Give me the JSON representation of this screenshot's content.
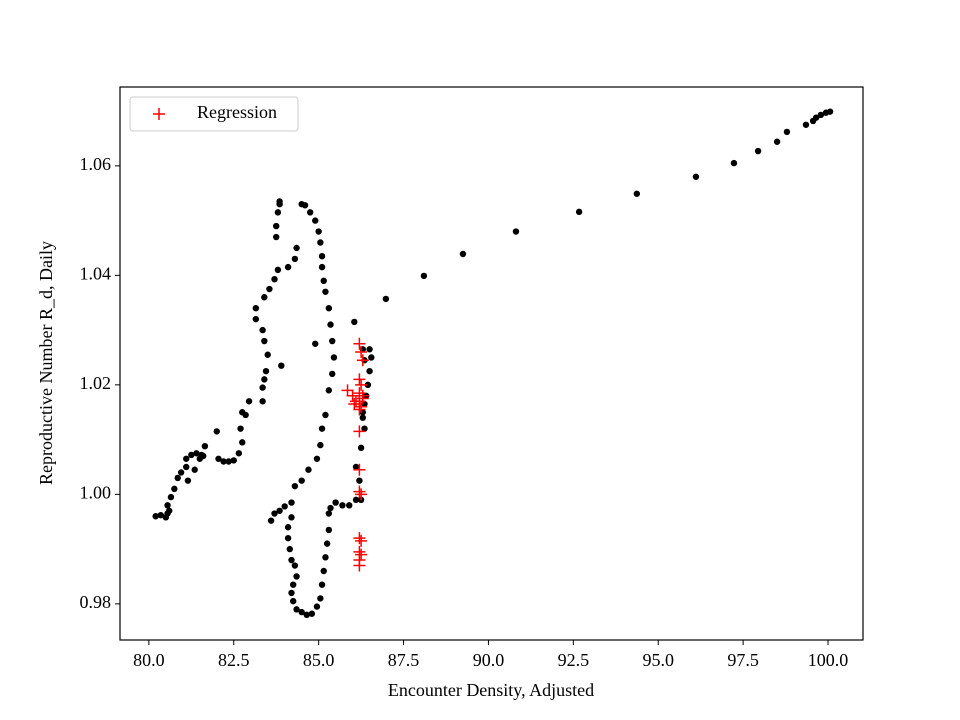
{
  "chart_data": {
    "type": "scatter",
    "xlabel": "Encounter Density, Adjusted",
    "ylabel": "Reproductive Number R_d, Daily",
    "xlim": [
      79.15,
      101.03
    ],
    "ylim": [
      0.9734,
      1.0744
    ],
    "xticks": [
      {
        "value": 80,
        "label": "80.0"
      },
      82.5,
      {
        "value": 85,
        "label": "85.0"
      },
      87.5,
      {
        "value": 90,
        "label": "90.0"
      },
      92.5,
      {
        "value": 95,
        "label": "95.0"
      },
      97.5,
      {
        "value": 100,
        "label": "100.0"
      }
    ],
    "yticks": [
      0.98,
      {
        "value": 1,
        "label": "1.00"
      },
      1.02,
      1.04,
      1.06
    ],
    "legend": "upper left",
    "series": [
      {
        "color": "#000000",
        "marker": "o",
        "x": [
          100.06,
          99.94,
          99.79,
          99.65,
          99.56,
          99.35,
          98.79,
          98.5,
          97.94,
          97.23,
          96.11,
          94.37,
          92.67,
          90.81,
          89.25,
          88.1,
          86.98,
          80.2,
          80.35,
          80.5,
          80.55,
          80.6,
          80.55,
          80.65,
          80.75,
          80.85,
          80.95,
          81.1,
          81.1,
          81.25,
          81.4,
          81.55,
          81.5,
          81.6,
          81.65,
          81.35,
          81.15,
          82.05,
          82.2,
          82.35,
          82.5,
          82.65,
          82.75,
          82.7,
          82.85,
          82.75,
          82.95,
          83.35,
          83.35,
          83.4,
          83.45,
          83.5,
          83.4,
          83.35,
          83.15,
          83.15,
          83.4,
          83.55,
          83.7,
          83.8,
          83.75,
          83.75,
          83.8,
          83.85,
          83.85,
          83.9,
          82.0,
          84.1,
          84.3,
          84.35,
          84.5,
          84.6,
          84.75,
          84.9,
          85.0,
          85.05,
          85.1,
          85.1,
          85.15,
          85.2,
          85.3,
          85.35,
          85.4,
          85.45,
          85.4,
          85.3,
          85.2,
          85.1,
          85.05,
          84.95,
          84.7,
          84.5,
          84.3,
          84.2,
          84.0,
          83.85,
          83.7,
          83.6,
          84.2,
          84.1,
          84.1,
          84.15,
          84.2,
          84.3,
          84.35,
          84.25,
          84.2,
          84.25,
          84.35,
          84.5,
          84.65,
          84.8,
          84.95,
          85.05,
          85.1,
          85.15,
          85.2,
          85.25,
          85.3,
          85.3,
          85.35,
          85.5,
          85.7,
          85.9,
          86.1,
          86.25,
          86.2,
          86.1,
          86.25,
          86.35,
          86.3,
          86.4,
          86.45,
          86.5,
          86.55,
          86.5,
          86.3,
          86.35,
          86.05,
          84.9,
          86.35,
          86.3
        ],
        "values": [
          1.0699,
          1.0697,
          1.0693,
          1.0688,
          1.0682,
          1.0675,
          1.0662,
          1.0644,
          1.0627,
          1.0605,
          1.058,
          1.0549,
          1.0516,
          1.048,
          1.0439,
          1.0399,
          1.0357,
          0.996,
          0.9962,
          0.9958,
          0.9965,
          0.997,
          0.998,
          0.9995,
          1.001,
          1.003,
          1.004,
          1.005,
          1.0065,
          1.0072,
          1.0075,
          1.0072,
          1.0065,
          1.007,
          1.0088,
          1.0045,
          1.0025,
          1.0065,
          1.006,
          1.006,
          1.0062,
          1.0075,
          1.0095,
          1.012,
          1.0145,
          1.015,
          1.017,
          1.017,
          1.0195,
          1.021,
          1.0225,
          1.0255,
          1.028,
          1.03,
          1.032,
          1.034,
          1.036,
          1.0375,
          1.0393,
          1.041,
          1.047,
          1.049,
          1.0515,
          1.053,
          1.0535,
          1.0235,
          1.0115,
          1.0415,
          1.043,
          1.045,
          1.053,
          1.0528,
          1.0515,
          1.05,
          1.048,
          1.046,
          1.0435,
          1.0415,
          1.039,
          1.037,
          1.034,
          1.031,
          1.028,
          1.025,
          1.022,
          1.019,
          1.0145,
          1.012,
          1.009,
          1.0065,
          1.0045,
          1.0025,
          1.0015,
          0.9985,
          0.9978,
          0.997,
          0.9965,
          0.9952,
          0.9958,
          0.994,
          0.992,
          0.99,
          0.988,
          0.987,
          0.985,
          0.9835,
          0.982,
          0.9805,
          0.979,
          0.9785,
          0.978,
          0.9782,
          0.9795,
          0.981,
          0.9835,
          0.986,
          0.9885,
          0.991,
          0.9935,
          0.9965,
          0.9975,
          0.9985,
          0.998,
          0.998,
          0.999,
          0.999,
          1.0025,
          1.005,
          1.0085,
          1.012,
          1.015,
          1.018,
          1.02,
          1.0225,
          1.025,
          1.0265,
          1.0265,
          1.0245,
          1.0315,
          1.0275,
          1.0165,
          1.014
        ]
      },
      {
        "name": "Regression",
        "color": "#ff0000",
        "marker": "+",
        "x": [
          86.2,
          86.25,
          86.3,
          86.2,
          86.25,
          86.2,
          86.3,
          86.2,
          86.25,
          86.2,
          86.2,
          86.2,
          86.2,
          86.25,
          86.2,
          86.25,
          86.2,
          86.25,
          86.2,
          86.2,
          85.85,
          86.0,
          86.1,
          86.05,
          86.3
        ],
        "values": [
          1.0275,
          1.026,
          1.0245,
          1.021,
          1.02,
          1.0185,
          1.018,
          1.017,
          1.016,
          1.0155,
          1.0115,
          1.0045,
          1.0005,
          1.0,
          0.992,
          0.9915,
          0.9895,
          0.989,
          0.988,
          0.987,
          1.019,
          1.018,
          1.017,
          1.0165,
          1.0175
        ]
      }
    ]
  }
}
